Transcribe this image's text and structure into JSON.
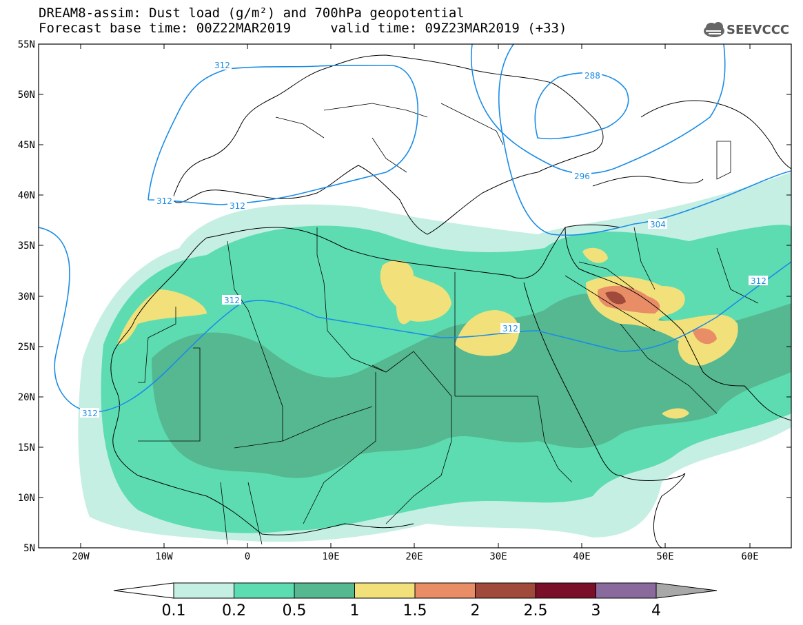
{
  "header": {
    "title_line1": "DREAM8-assim: Dust load (g/m²) and 700hPa geopotential",
    "title_line2": "Forecast base time: 00Z22MAR2019     valid time: 09Z23MAR2019 (+33)",
    "logo_text": "SEEVCCC"
  },
  "map": {
    "lat_labels": [
      "55N",
      "50N",
      "45N",
      "40N",
      "35N",
      "30N",
      "25N",
      "20N",
      "15N",
      "10N",
      "5N"
    ],
    "lon_labels": [
      "20W",
      "10W",
      "0",
      "10E",
      "20E",
      "30E",
      "40E",
      "50E",
      "60E"
    ],
    "geopotential_contours": [
      {
        "label": "312"
      },
      {
        "label": "312"
      },
      {
        "label": "312"
      },
      {
        "label": "312"
      },
      {
        "label": "312"
      },
      {
        "label": "312"
      },
      {
        "label": "312"
      },
      {
        "label": "288"
      },
      {
        "label": "296"
      },
      {
        "label": "304"
      }
    ],
    "contour_color": "#1a8ce6"
  },
  "colorbar": {
    "labels": [
      "0.1",
      "0.2",
      "0.5",
      "1",
      "1.5",
      "2",
      "2.5",
      "3",
      "4"
    ],
    "colors": [
      "#c6efe3",
      "#5ddcb2",
      "#55b890",
      "#f2e17a",
      "#e98d67",
      "#a04a3c",
      "#7a0f2a",
      "#8a6a9c"
    ]
  }
}
